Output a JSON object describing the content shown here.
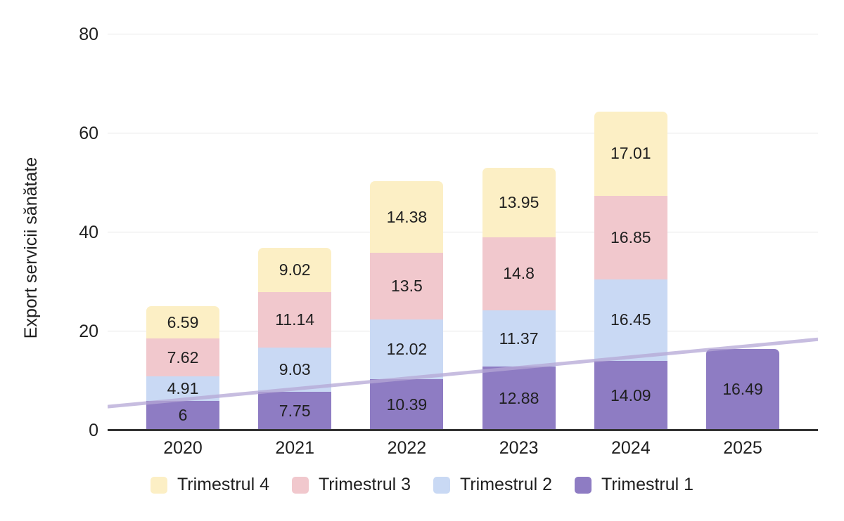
{
  "chart_data": {
    "type": "bar",
    "stacked": true,
    "title": "",
    "xlabel": "",
    "ylabel": "Export servicii sănătate",
    "categories": [
      "2020",
      "2021",
      "2022",
      "2023",
      "2024",
      "2025"
    ],
    "series": [
      {
        "name": "Trimestrul 1",
        "color": "#8E7CC3",
        "values": [
          6,
          7.75,
          10.39,
          12.88,
          14.09,
          16.49
        ]
      },
      {
        "name": "Trimestrul 2",
        "color": "#C9D9F4",
        "values": [
          4.91,
          9.03,
          12.02,
          11.37,
          16.45,
          null
        ]
      },
      {
        "name": "Trimestrul 3",
        "color": "#F1C8CD",
        "values": [
          7.62,
          11.14,
          13.5,
          14.8,
          16.85,
          null
        ]
      },
      {
        "name": "Trimestrul 4",
        "color": "#FCEFC5",
        "values": [
          6.59,
          9.02,
          14.38,
          13.95,
          17.01,
          null
        ]
      }
    ],
    "bar_value_labels_shown": true,
    "y_ticks": [
      0,
      20,
      40,
      60,
      80
    ],
    "ylim": [
      0,
      80
    ],
    "grid": true,
    "trendline": {
      "start_value": 4.8,
      "end_value": 18.4,
      "color": "#B4A7D6",
      "opacity": 0.75
    },
    "legend": {
      "position": "bottom",
      "items": [
        {
          "label": "Trimestrul 4",
          "color": "#FCEFC5"
        },
        {
          "label": "Trimestrul 3",
          "color": "#F1C8CD"
        },
        {
          "label": "Trimestrul 2",
          "color": "#C9D9F4"
        },
        {
          "label": "Trimestrul 1",
          "color": "#8E7CC3"
        }
      ]
    },
    "colors": {
      "gridline": "#e6e6e6",
      "axis_line": "#333333",
      "text": "#1f1f1f"
    }
  }
}
